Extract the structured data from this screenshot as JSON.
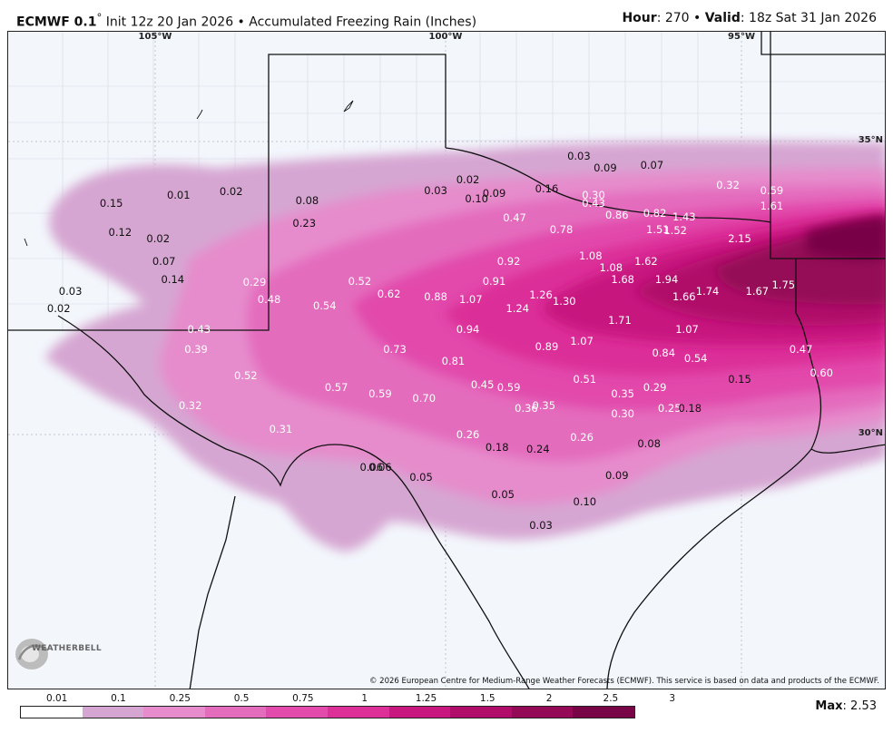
{
  "header": {
    "model": "ECMWF 0.1",
    "degree": "°",
    "init_text": " Init 12z 20 Jan 2026 • Accumulated Freezing Rain (Inches)",
    "hour_label": "Hour",
    "hour_value": ": 270 • ",
    "valid_label": "Valid",
    "valid_value": ": 18z Sat 31 Jan 2026"
  },
  "lon_labels": [
    "105°W",
    "100°W",
    "95°W"
  ],
  "lat_labels": [
    "35°N",
    "30°N"
  ],
  "copyright": "© 2026 European Centre for Medium-Range Weather Forecasts (ECMWF). This service is based on data and products of the ECMWF.",
  "logo_text": "WEATHERBELL",
  "legend": {
    "ticks": [
      "0.01",
      "0.1",
      "0.25",
      "0.5",
      "0.75",
      "1",
      "1.25",
      "1.5",
      "2",
      "2.5",
      "3"
    ],
    "colors": [
      "#ffffff",
      "#d6a6d2",
      "#e68ccc",
      "#e46cbd",
      "#e24aab",
      "#dc2f98",
      "#c8187f",
      "#b00c69",
      "#940a56",
      "#780647"
    ],
    "max_label": "Max",
    "max_value": ": 2.53"
  },
  "colors": {
    "background": "#f3f7fc",
    "state_border": "#111111",
    "county_border": "#c7ccd6"
  },
  "point_values": [
    {
      "v": "0.15",
      "lx": -105.75,
      "ly": 33.95
    },
    {
      "v": "0.01",
      "lx": -104.6,
      "ly": 34.08
    },
    {
      "v": "0.02",
      "lx": -103.7,
      "ly": 34.15
    },
    {
      "v": "0.12",
      "lx": -105.6,
      "ly": 33.45
    },
    {
      "v": "0.02",
      "lx": -104.95,
      "ly": 33.35
    },
    {
      "v": "0.07",
      "lx": -104.85,
      "ly": 32.95
    },
    {
      "v": "0.14",
      "lx": -104.7,
      "ly": 32.65
    },
    {
      "v": "0.03",
      "lx": -106.45,
      "ly": 32.45
    },
    {
      "v": "0.02",
      "lx": -106.65,
      "ly": 32.15
    },
    {
      "v": "0.08",
      "lx": -102.4,
      "ly": 34.0
    },
    {
      "v": "0.23",
      "lx": -102.45,
      "ly": 33.6
    },
    {
      "v": "0.03",
      "lx": -100.2,
      "ly": 34.17
    },
    {
      "v": "0.02",
      "lx": -99.65,
      "ly": 34.35
    },
    {
      "v": "0.10",
      "lx": -99.5,
      "ly": 34.02
    },
    {
      "v": "0.09",
      "lx": -99.2,
      "ly": 34.11
    },
    {
      "v": "0.03",
      "lx": -97.75,
      "ly": 34.75
    },
    {
      "v": "0.09",
      "lx": -97.3,
      "ly": 34.55
    },
    {
      "v": "0.07",
      "lx": -96.5,
      "ly": 34.6
    },
    {
      "v": "0.16",
      "lx": -98.3,
      "ly": 34.2
    },
    {
      "v": "0.30",
      "lx": -97.5,
      "ly": 34.08
    },
    {
      "v": "0.43",
      "lx": -97.5,
      "ly": 33.95
    },
    {
      "v": "0.86",
      "lx": -97.1,
      "ly": 33.75
    },
    {
      "v": "0.82",
      "lx": -96.45,
      "ly": 33.78
    },
    {
      "v": "1.43",
      "lx": -95.95,
      "ly": 33.72
    },
    {
      "v": "0.32",
      "lx": -95.2,
      "ly": 34.25
    },
    {
      "v": "0.59",
      "lx": -94.45,
      "ly": 34.17
    },
    {
      "v": "1.61",
      "lx": -94.45,
      "ly": 33.9
    },
    {
      "v": "0.47",
      "lx": -98.85,
      "ly": 33.7
    },
    {
      "v": "0.78",
      "lx": -98.05,
      "ly": 33.5
    },
    {
      "v": "1.51",
      "lx": -96.4,
      "ly": 33.5
    },
    {
      "v": "1.52",
      "lx": -96.1,
      "ly": 33.48
    },
    {
      "v": "2.15",
      "lx": -95.0,
      "ly": 33.35
    },
    {
      "v": "0.92",
      "lx": -98.95,
      "ly": 32.95
    },
    {
      "v": "1.08",
      "lx": -97.55,
      "ly": 33.05
    },
    {
      "v": "1.08",
      "lx": -97.2,
      "ly": 32.85
    },
    {
      "v": "1.62",
      "lx": -96.6,
      "ly": 32.95
    },
    {
      "v": "1.68",
      "lx": -97.0,
      "ly": 32.65
    },
    {
      "v": "1.94",
      "lx": -96.25,
      "ly": 32.65
    },
    {
      "v": "1.74",
      "lx": -95.55,
      "ly": 32.45
    },
    {
      "v": "1.67",
      "lx": -94.7,
      "ly": 32.45
    },
    {
      "v": "1.75",
      "lx": -94.25,
      "ly": 32.55
    },
    {
      "v": "1.66",
      "lx": -95.95,
      "ly": 32.35
    },
    {
      "v": "0.29",
      "lx": -103.3,
      "ly": 32.6
    },
    {
      "v": "0.52",
      "lx": -101.5,
      "ly": 32.62
    },
    {
      "v": "0.48",
      "lx": -103.05,
      "ly": 32.3
    },
    {
      "v": "0.54",
      "lx": -102.1,
      "ly": 32.2
    },
    {
      "v": "0.62",
      "lx": -101.0,
      "ly": 32.4
    },
    {
      "v": "0.88",
      "lx": -100.2,
      "ly": 32.35
    },
    {
      "v": "0.91",
      "lx": -99.2,
      "ly": 32.62
    },
    {
      "v": "1.07",
      "lx": -99.6,
      "ly": 32.3
    },
    {
      "v": "1.26",
      "lx": -98.4,
      "ly": 32.38
    },
    {
      "v": "1.30",
      "lx": -98.0,
      "ly": 32.28
    },
    {
      "v": "1.24",
      "lx": -98.8,
      "ly": 32.15
    },
    {
      "v": "1.71",
      "lx": -97.05,
      "ly": 31.95
    },
    {
      "v": "1.07",
      "lx": -95.9,
      "ly": 31.8
    },
    {
      "v": "0.43",
      "lx": -104.25,
      "ly": 31.8
    },
    {
      "v": "0.39",
      "lx": -104.3,
      "ly": 31.45
    },
    {
      "v": "0.73",
      "lx": -100.9,
      "ly": 31.45
    },
    {
      "v": "0.94",
      "lx": -99.65,
      "ly": 31.8
    },
    {
      "v": "1.07",
      "lx": -97.7,
      "ly": 31.6
    },
    {
      "v": "0.89",
      "lx": -98.3,
      "ly": 31.5
    },
    {
      "v": "0.81",
      "lx": -99.9,
      "ly": 31.25
    },
    {
      "v": "0.84",
      "lx": -96.3,
      "ly": 31.4
    },
    {
      "v": "0.54",
      "lx": -95.75,
      "ly": 31.3
    },
    {
      "v": "0.47",
      "lx": -93.95,
      "ly": 31.45
    },
    {
      "v": "0.60",
      "lx": -93.6,
      "ly": 31.05
    },
    {
      "v": "0.52",
      "lx": -103.45,
      "ly": 31.0
    },
    {
      "v": "0.57",
      "lx": -101.9,
      "ly": 30.8
    },
    {
      "v": "0.59",
      "lx": -101.15,
      "ly": 30.7
    },
    {
      "v": "0.70",
      "lx": -100.4,
      "ly": 30.62
    },
    {
      "v": "0.45",
      "lx": -99.4,
      "ly": 30.85
    },
    {
      "v": "0.59",
      "lx": -98.95,
      "ly": 30.8
    },
    {
      "v": "0.51",
      "lx": -97.65,
      "ly": 30.95
    },
    {
      "v": "0.35",
      "lx": -97.0,
      "ly": 30.7
    },
    {
      "v": "0.29",
      "lx": -96.45,
      "ly": 30.8
    },
    {
      "v": "0.15",
      "lx": -95.0,
      "ly": 30.95
    },
    {
      "v": "0.32",
      "lx": -104.4,
      "ly": 30.5
    },
    {
      "v": "0.36",
      "lx": -98.65,
      "ly": 30.45
    },
    {
      "v": "0.35",
      "lx": -98.35,
      "ly": 30.5
    },
    {
      "v": "0.30",
      "lx": -97.0,
      "ly": 30.35
    },
    {
      "v": "0.25",
      "lx": -96.2,
      "ly": 30.45
    },
    {
      "v": "0.18",
      "lx": -95.85,
      "ly": 30.45
    },
    {
      "v": "0.31",
      "lx": -102.85,
      "ly": 30.1
    },
    {
      "v": "0.26",
      "lx": -99.65,
      "ly": 30.0
    },
    {
      "v": "0.18",
      "lx": -99.15,
      "ly": 29.78
    },
    {
      "v": "0.24",
      "lx": -98.45,
      "ly": 29.75
    },
    {
      "v": "0.26",
      "lx": -97.7,
      "ly": 29.95
    },
    {
      "v": "0.08",
      "lx": -96.55,
      "ly": 29.85
    },
    {
      "v": "0.06",
      "lx": -101.15,
      "ly": 29.45
    },
    {
      "v": "0.06",
      "lx": -101.3,
      "ly": 29.45
    },
    {
      "v": "0.05",
      "lx": -100.45,
      "ly": 29.28
    },
    {
      "v": "0.09",
      "lx": -97.1,
      "ly": 29.3
    },
    {
      "v": "0.05",
      "lx": -99.05,
      "ly": 28.98
    },
    {
      "v": "0.10",
      "lx": -97.65,
      "ly": 28.85
    },
    {
      "v": "0.03",
      "lx": -98.4,
      "ly": 28.45
    }
  ]
}
